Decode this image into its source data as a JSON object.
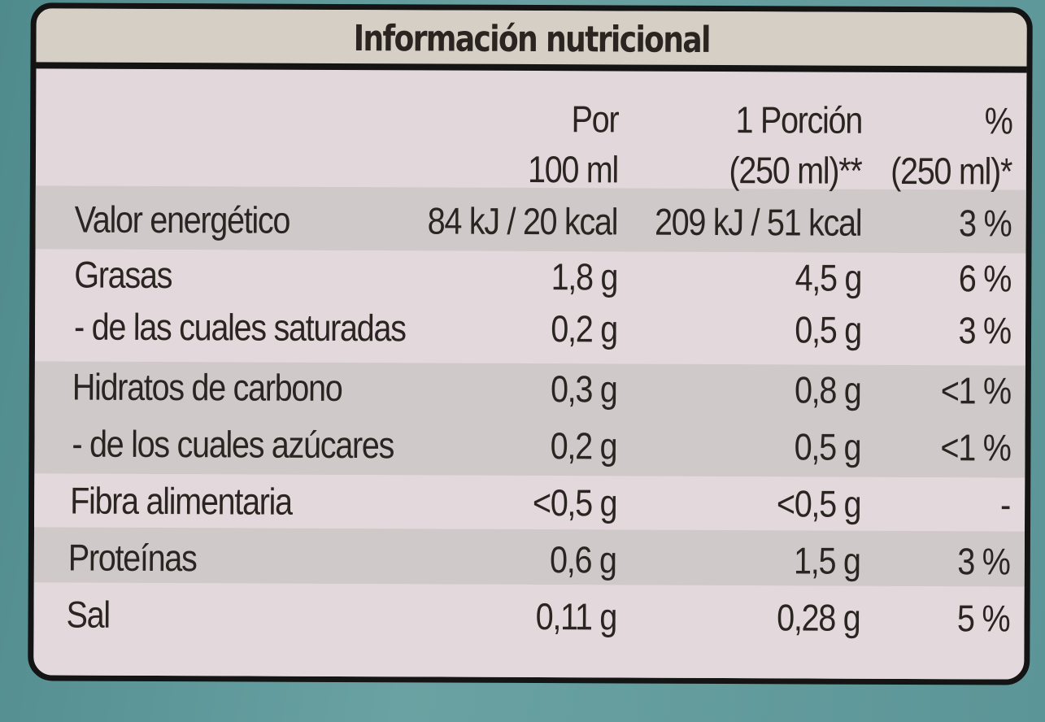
{
  "title": "Información nutricional",
  "header": {
    "col1": [
      "Por",
      "100 ml"
    ],
    "col2": [
      "1 Porción",
      "(250 ml)**"
    ],
    "col3": [
      "%",
      "(250 ml)*"
    ]
  },
  "rows": [
    {
      "label": "Valor energético",
      "per100": "84 kJ / 20 kcal",
      "portion": "209 kJ / 51 kcal",
      "pct": "3 %"
    },
    {
      "label": "Grasas",
      "per100": "1,8 g",
      "portion": "4,5 g",
      "pct": "6 %"
    },
    {
      "label": "- de las cuales saturadas",
      "per100": "0,2 g",
      "portion": "0,5 g",
      "pct": "3 %"
    },
    {
      "label": "Hidratos de carbono",
      "per100": "0,3 g",
      "portion": "0,8 g",
      "pct": "<1 %"
    },
    {
      "label": "- de los cuales azúcares",
      "per100": "0,2 g",
      "portion": "0,5 g",
      "pct": "<1 %"
    },
    {
      "label": "Fibra alimentaria",
      "per100": "<0,5 g",
      "portion": "<0,5 g",
      "pct": "-"
    },
    {
      "label": "Proteínas",
      "per100": "0,6 g",
      "portion": "1,5 g",
      "pct": "3 %"
    },
    {
      "label": "Sal",
      "per100": "0,11 g",
      "portion": "0,28 g",
      "pct": "5 %"
    }
  ],
  "colors": {
    "label_bg": "#e2d8dc",
    "shade_band": "#cfc9c9",
    "border": "#141414",
    "text": "#2a2521",
    "background": "#5f9698"
  }
}
